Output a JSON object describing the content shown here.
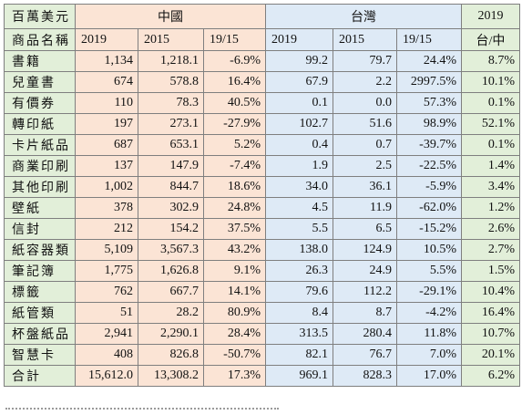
{
  "header": {
    "unit_label": "百萬美元",
    "item_label": "商品名稱",
    "china_label": "中國",
    "taiwan_label": "台灣",
    "ratio_year": "2019",
    "ratio_label": "台/中",
    "col_2019": "2019",
    "col_2015": "2015",
    "col_growth": "19/15"
  },
  "rows": [
    {
      "name": "書籍",
      "cn2019": "1,134",
      "cn2015": "1,218.1",
      "cng": "-6.9%",
      "tw2019": "99.2",
      "tw2015": "79.7",
      "twg": "24.4%",
      "ratio": "8.7%"
    },
    {
      "name": "兒童書",
      "cn2019": "674",
      "cn2015": "578.8",
      "cng": "16.4%",
      "tw2019": "67.9",
      "tw2015": "2.2",
      "twg": "2997.5%",
      "ratio": "10.1%"
    },
    {
      "name": "有價券",
      "cn2019": "110",
      "cn2015": "78.3",
      "cng": "40.5%",
      "tw2019": "0.1",
      "tw2015": "0.0",
      "twg": "57.3%",
      "ratio": "0.1%"
    },
    {
      "name": "轉印紙",
      "cn2019": "197",
      "cn2015": "273.1",
      "cng": "-27.9%",
      "tw2019": "102.7",
      "tw2015": "51.6",
      "twg": "98.9%",
      "ratio": "52.1%"
    },
    {
      "name": "卡片紙品",
      "cn2019": "687",
      "cn2015": "653.1",
      "cng": "5.2%",
      "tw2019": "0.4",
      "tw2015": "0.7",
      "twg": "-39.7%",
      "ratio": "0.1%"
    },
    {
      "name": "商業印刷",
      "cn2019": "137",
      "cn2015": "147.9",
      "cng": "-7.4%",
      "tw2019": "1.9",
      "tw2015": "2.5",
      "twg": "-22.5%",
      "ratio": "1.4%"
    },
    {
      "name": "其他印刷",
      "cn2019": "1,002",
      "cn2015": "844.7",
      "cng": "18.6%",
      "tw2019": "34.0",
      "tw2015": "36.1",
      "twg": "-5.9%",
      "ratio": "3.4%"
    },
    {
      "name": "壁紙",
      "cn2019": "378",
      "cn2015": "302.9",
      "cng": "24.8%",
      "tw2019": "4.5",
      "tw2015": "11.9",
      "twg": "-62.0%",
      "ratio": "1.2%"
    },
    {
      "name": "信封",
      "cn2019": "212",
      "cn2015": "154.2",
      "cng": "37.5%",
      "tw2019": "5.5",
      "tw2015": "6.5",
      "twg": "-15.2%",
      "ratio": "2.6%"
    },
    {
      "name": "紙容器類",
      "cn2019": "5,109",
      "cn2015": "3,567.3",
      "cng": "43.2%",
      "tw2019": "138.0",
      "tw2015": "124.9",
      "twg": "10.5%",
      "ratio": "2.7%"
    },
    {
      "name": "筆記簿",
      "cn2019": "1,775",
      "cn2015": "1,626.8",
      "cng": "9.1%",
      "tw2019": "26.3",
      "tw2015": "24.9",
      "twg": "5.5%",
      "ratio": "1.5%"
    },
    {
      "name": "標籤",
      "cn2019": "762",
      "cn2015": "667.7",
      "cng": "14.1%",
      "tw2019": "79.6",
      "tw2015": "112.2",
      "twg": "-29.1%",
      "ratio": "10.4%"
    },
    {
      "name": "紙管類",
      "cn2019": "51",
      "cn2015": "28.2",
      "cng": "80.9%",
      "tw2019": "8.4",
      "tw2015": "8.7",
      "twg": "-4.2%",
      "ratio": "16.4%"
    },
    {
      "name": "杯盤紙品",
      "cn2019": "2,941",
      "cn2015": "2,290.1",
      "cng": "28.4%",
      "tw2019": "313.5",
      "tw2015": "280.4",
      "twg": "11.8%",
      "ratio": "10.7%"
    },
    {
      "name": "智慧卡",
      "cn2019": "408",
      "cn2015": "826.8",
      "cng": "-50.7%",
      "tw2019": "82.1",
      "tw2015": "76.7",
      "twg": "7.0%",
      "ratio": "20.1%"
    },
    {
      "name": "合計",
      "cn2019": "15,612.0",
      "cn2015": "13,308.2",
      "cng": "17.3%",
      "tw2019": "969.1",
      "tw2015": "828.3",
      "twg": "17.0%",
      "ratio": "6.2%"
    }
  ]
}
